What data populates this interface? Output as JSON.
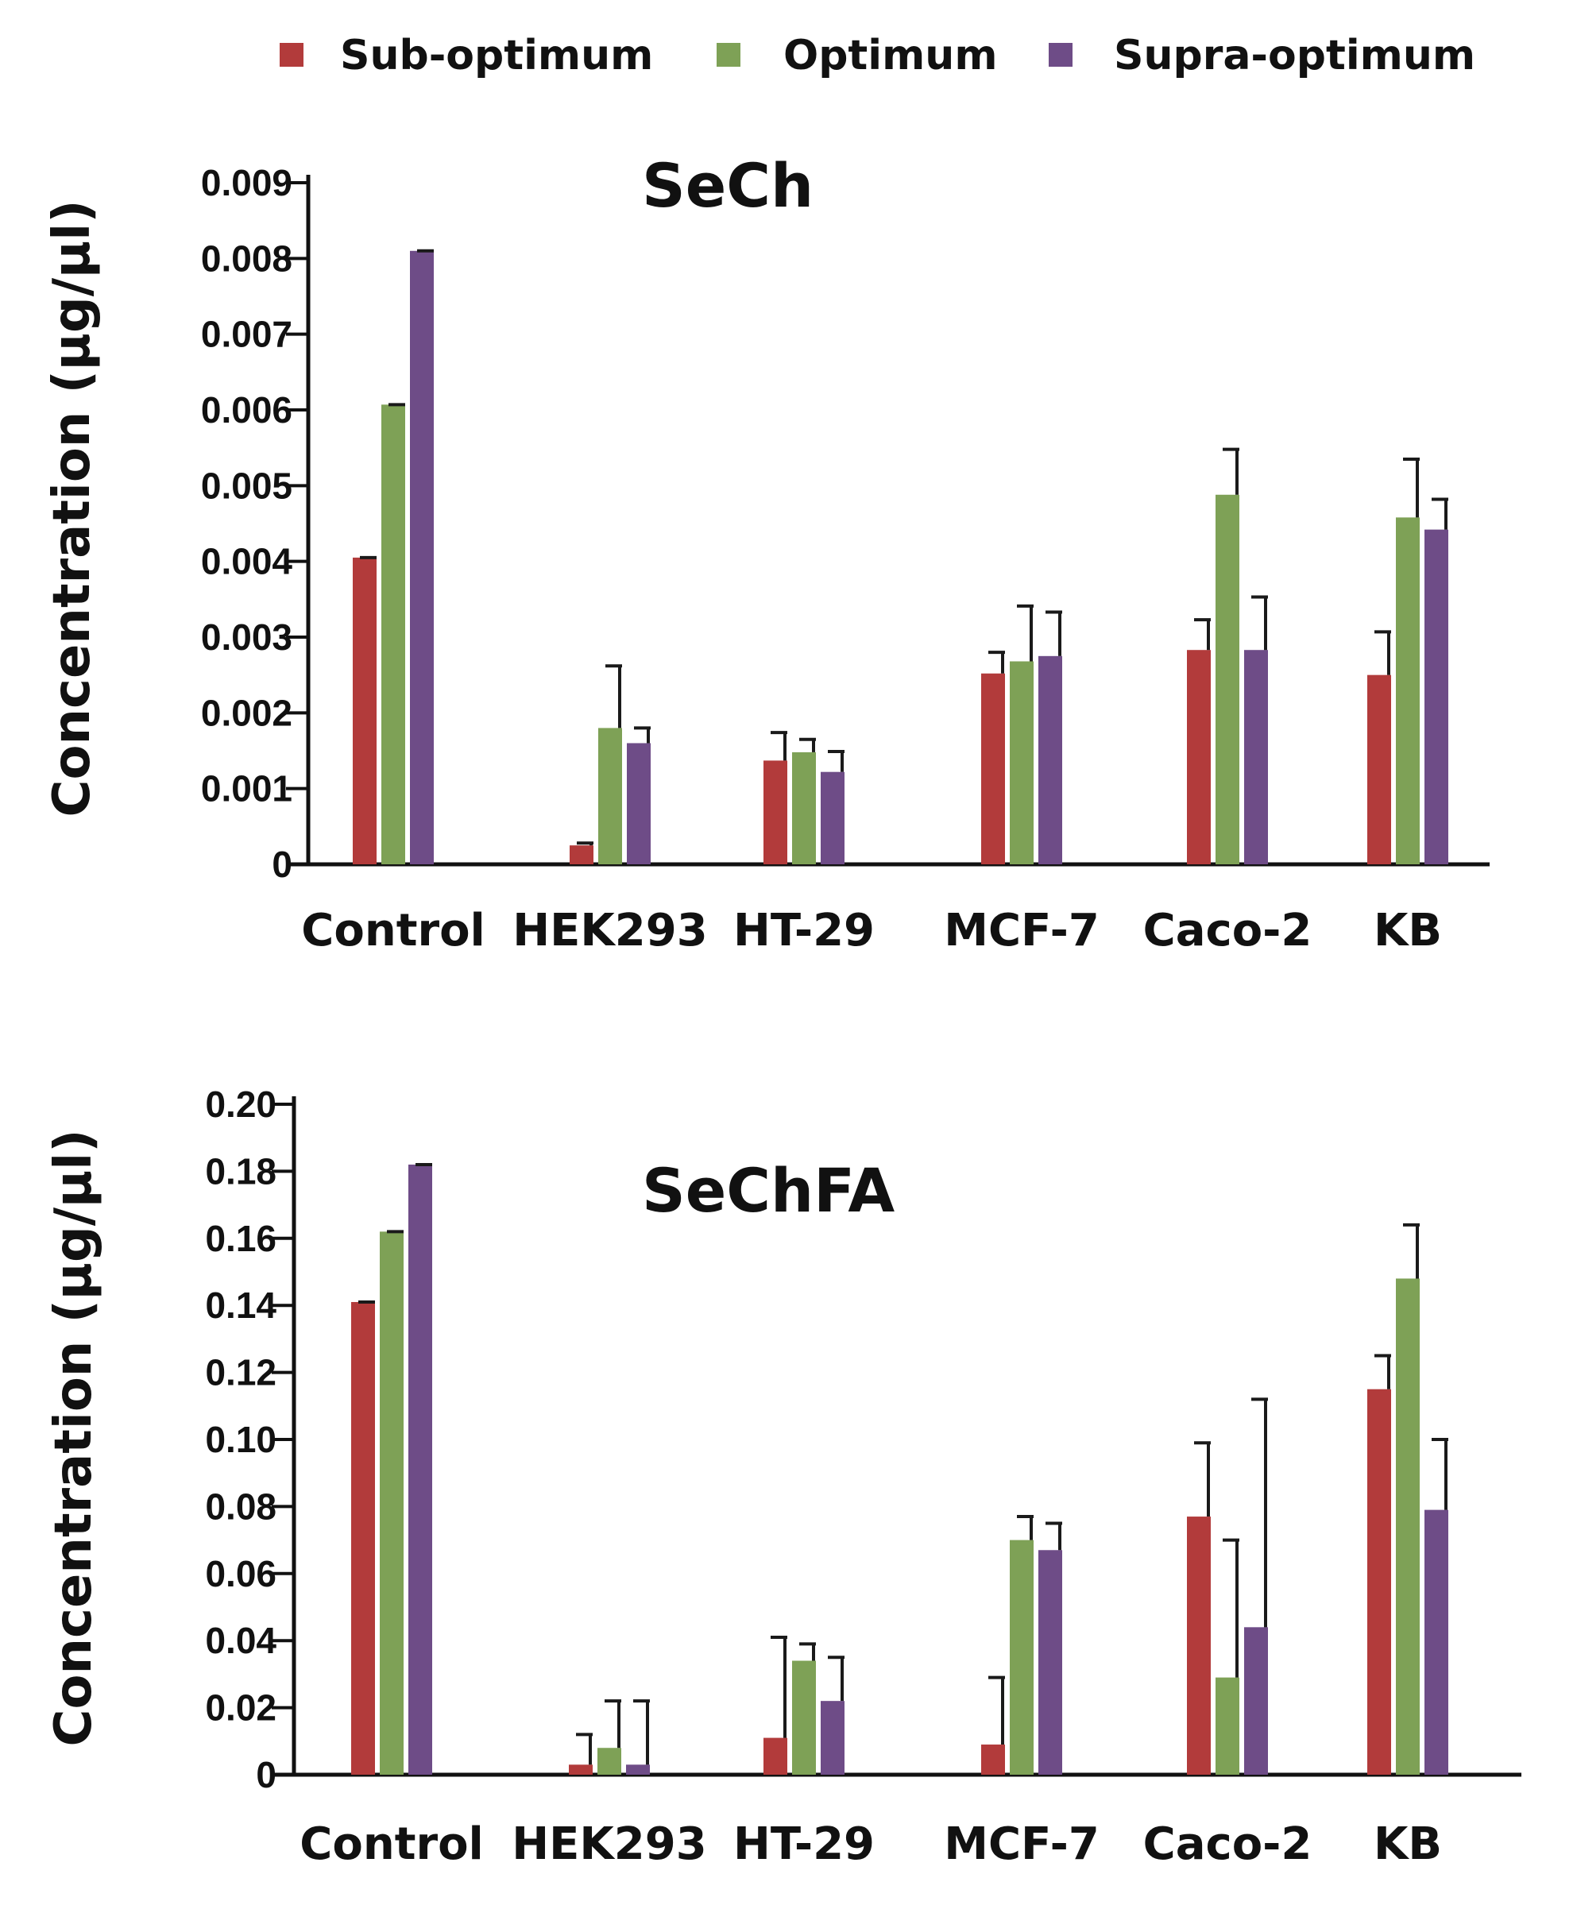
{
  "legend": [
    {
      "label": "Sub-optimum",
      "color": "#b23b3b"
    },
    {
      "label": "Optimum",
      "color": "#7ea156"
    },
    {
      "label": "Supra-optimum",
      "color": "#6e4c87"
    }
  ],
  "chart_data": [
    {
      "type": "bar",
      "title": "SeCh",
      "xlabel": "",
      "ylabel": "Concentration (μg/μl)",
      "ylim": [
        0,
        0.009
      ],
      "yticks": [
        0,
        0.001,
        0.002,
        0.003,
        0.004,
        0.005,
        0.006,
        0.007,
        0.008,
        0.009
      ],
      "ytick_labels": [
        "0",
        "0.001",
        "0.002",
        "0.003",
        "0.004",
        "0.005",
        "0.006",
        "0.007",
        "0.008",
        "0.009"
      ],
      "categories": [
        "Control",
        "HEK293",
        "HT-29",
        "MCF-7",
        "Caco-2",
        "KB"
      ],
      "series": [
        {
          "name": "Sub-optimum",
          "values": [
            0.00405,
            0.00025,
            0.00137,
            0.00252,
            0.00283,
            0.0025
          ],
          "errors": [
            0.0,
            3e-05,
            0.00037,
            0.00028,
            0.0004,
            0.00057
          ]
        },
        {
          "name": "Optimum",
          "values": [
            0.00607,
            0.0018,
            0.00148,
            0.00268,
            0.00488,
            0.00458
          ],
          "errors": [
            0.0,
            0.00082,
            0.00017,
            0.00073,
            0.0006,
            0.00077
          ]
        },
        {
          "name": "Supra-optimum",
          "values": [
            0.0081,
            0.0016,
            0.00122,
            0.00275,
            0.00283,
            0.00442
          ],
          "errors": [
            0.0,
            0.0002,
            0.00027,
            0.00058,
            0.0007,
            0.0004
          ]
        }
      ]
    },
    {
      "type": "bar",
      "title": "SeChFA",
      "xlabel": "",
      "ylabel": "Concentration (μg/μl)",
      "ylim": [
        0,
        0.2
      ],
      "yticks": [
        0,
        0.02,
        0.04,
        0.06,
        0.08,
        0.1,
        0.12,
        0.14,
        0.16,
        0.18,
        0.2
      ],
      "ytick_labels": [
        "0",
        "0.02",
        "0.04",
        "0.06",
        "0.08",
        "0.10",
        "0.12",
        "0.14",
        "0.16",
        "0.18",
        "0.20"
      ],
      "categories": [
        "Control",
        "HEK293",
        "HT-29",
        "MCF-7",
        "Caco-2",
        "KB"
      ],
      "series": [
        {
          "name": "Sub-optimum",
          "values": [
            0.141,
            0.003,
            0.011,
            0.009,
            0.077,
            0.115
          ],
          "errors": [
            0.0,
            0.009,
            0.03,
            0.02,
            0.022,
            0.01
          ]
        },
        {
          "name": "Optimum",
          "values": [
            0.162,
            0.008,
            0.034,
            0.07,
            0.029,
            0.148
          ],
          "errors": [
            0.0,
            0.014,
            0.005,
            0.007,
            0.041,
            0.016
          ]
        },
        {
          "name": "Supra-optimum",
          "values": [
            0.182,
            0.003,
            0.022,
            0.067,
            0.044,
            0.079
          ],
          "errors": [
            0.0,
            0.019,
            0.013,
            0.008,
            0.068,
            0.021
          ]
        }
      ]
    }
  ]
}
